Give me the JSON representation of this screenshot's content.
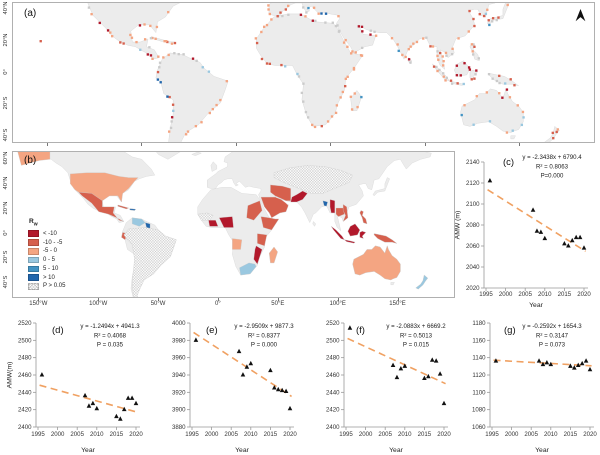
{
  "figure": {
    "background": "#ffffff",
    "panel_labels": {
      "a": "(a)",
      "b": "(b)",
      "c": "(c)",
      "d": "(d)",
      "e": "(e)",
      "f": "(f)",
      "g": "(g)"
    }
  },
  "panel_a": {
    "type": "map",
    "lat_tick_labels": [
      "40°N",
      "20°N",
      "0°",
      "20°S",
      "40°S"
    ],
    "lat_tick_values": [
      40,
      20,
      0,
      -20,
      -40
    ],
    "dot_colors": {
      "dark_red": "#b2182b",
      "red": "#d6604d",
      "salmon": "#f4a582",
      "light_blue": "#9ac8e0",
      "blue": "#4393c3",
      "dark_blue": "#2166ac",
      "ns_gray": "#cbcbcb"
    },
    "land_color": "#ececec",
    "border_color": "#d9d9d9"
  },
  "panel_b": {
    "type": "map",
    "lat_tick_labels": [
      "60°N",
      "40°N",
      "20°N",
      "0°",
      "20°S",
      "40°S"
    ],
    "lat_tick_values": [
      60,
      40,
      20,
      0,
      -20,
      -40
    ],
    "lon_tick_labels": [
      "150°W",
      "100°W",
      "50°W",
      "0°",
      "50°E",
      "100°E",
      "150°E"
    ],
    "lon_tick_values": [
      -150,
      -100,
      -50,
      0,
      50,
      100,
      150
    ],
    "legend": {
      "title_main": "R",
      "title_sub": "w",
      "items": [
        {
          "label": "< -10",
          "color": "#b2182b"
        },
        {
          "label": "-10 - -5",
          "color": "#d6604d"
        },
        {
          "label": "-5 - 0",
          "color": "#f4a582"
        },
        {
          "label": "0 - 5",
          "color": "#9ac8e0"
        },
        {
          "label": "5 - 10",
          "color": "#4393c3"
        },
        {
          "label": "> 10",
          "color": "#2166ac"
        },
        {
          "label": "P > 0.05",
          "color": "hatch"
        }
      ]
    },
    "country_categories": {
      "usa": 2,
      "alaska": 2,
      "mexico": 1,
      "cuba": 1,
      "hispaniola": 5,
      "venezuela": 3,
      "guyana": 5,
      "ecuador": 1,
      "south_america": 6,
      "wafrica": 6,
      "ghana_ivory": 0,
      "nigeria": 0,
      "sudan_egypt": 1,
      "horn_africa": 1,
      "tanzania": 1,
      "mozambique": 0,
      "angola": 2,
      "madagascar": 2,
      "south_africa": 3,
      "iran": 1,
      "saudi": 1,
      "pakistan": 0,
      "central_asia_china": 6,
      "bangladesh": 5,
      "myanmar": 0,
      "thailand": 1,
      "vietnam": 1,
      "sumatra": 0,
      "java": 0,
      "borneo": 0,
      "sulawesi": 0,
      "new_guinea": 1,
      "philippines": 1,
      "australia": 2,
      "new_zealand": 3
    },
    "land_color": "#ececec",
    "border_color": "#d4d4d4"
  },
  "chart_data": [
    {
      "panel": "c",
      "type": "scatter",
      "xlabel": "Year",
      "ylabel": "AMW (m)",
      "xlim": [
        1995,
        2020
      ],
      "ylim": [
        2020,
        2140
      ],
      "xticks": [
        1995,
        2000,
        2005,
        2010,
        2015,
        2020
      ],
      "yticks": [
        2020,
        2040,
        2060,
        2080,
        2100,
        2120,
        2140
      ],
      "x": [
        1996,
        2007,
        2008,
        2009,
        2010,
        2015,
        2016,
        2017,
        2018,
        2019,
        2020
      ],
      "y": [
        2122,
        2094,
        2074,
        2073,
        2067,
        2062,
        2060,
        2065,
        2068,
        2068,
        2058
      ],
      "trend": {
        "slope": -2.3438,
        "intercept": 6790.4,
        "equation": "y = -2.3438x + 6790.4",
        "r2": "R² = 0.8063",
        "p": "P=0.000"
      },
      "marker_color": "#111111",
      "trend_color": "#f0a162",
      "trend_style": "dashed"
    },
    {
      "panel": "d",
      "type": "scatter",
      "xlabel": "Year",
      "ylabel": "AMW(m)",
      "xlim": [
        1995,
        2020
      ],
      "ylim": [
        2400,
        2520
      ],
      "xticks": [
        1995,
        2000,
        2005,
        2010,
        2015,
        2020
      ],
      "yticks": [
        2400,
        2420,
        2440,
        2460,
        2480,
        2500,
        2520
      ],
      "x": [
        1996,
        2007,
        2008,
        2009,
        2010,
        2015,
        2016,
        2017,
        2018,
        2019,
        2020
      ],
      "y": [
        2460,
        2436,
        2424,
        2427,
        2421,
        2412,
        2409,
        2420,
        2433,
        2433,
        2427
      ],
      "trend": {
        "slope": -1.2494,
        "intercept": 4941.3,
        "equation": "y = -1.2494x + 4941.3",
        "r2": "R² = 0.4068",
        "p": "P = 0.035"
      },
      "marker_color": "#111111",
      "trend_color": "#f0a162",
      "trend_style": "dashed"
    },
    {
      "panel": "e",
      "type": "scatter",
      "xlabel": "Year",
      "ylabel": "",
      "xlim": [
        1995,
        2020
      ],
      "ylim": [
        3880,
        4000
      ],
      "xticks": [
        1995,
        2000,
        2005,
        2010,
        2015,
        2020
      ],
      "yticks": [
        3880,
        3900,
        3920,
        3940,
        3960,
        3980,
        4000
      ],
      "x": [
        1996,
        2007,
        2008,
        2009,
        2010,
        2015,
        2016,
        2017,
        2018,
        2019,
        2020
      ],
      "y": [
        3980,
        3967,
        3940,
        3949,
        3953,
        3945,
        3925,
        3923,
        3922,
        3921,
        3901
      ],
      "trend": {
        "slope": -2.9509,
        "intercept": 9877.3,
        "equation": "y = -2.9509x + 9877.3",
        "r2": "R² = 0.8377",
        "p": "P = 0.000"
      },
      "marker_color": "#111111",
      "trend_color": "#f0a162",
      "trend_style": "dashed"
    },
    {
      "panel": "f",
      "type": "scatter",
      "xlabel": "Year",
      "ylabel": "",
      "xlim": [
        1995,
        2020
      ],
      "ylim": [
        2400,
        2520
      ],
      "xticks": [
        1995,
        2000,
        2005,
        2010,
        2015,
        2020
      ],
      "yticks": [
        2400,
        2420,
        2440,
        2460,
        2480,
        2500,
        2520
      ],
      "x": [
        1996,
        2007,
        2008,
        2009,
        2010,
        2015,
        2016,
        2017,
        2018,
        2019,
        2020
      ],
      "y": [
        2514,
        2471,
        2457,
        2467,
        2470,
        2456,
        2458,
        2477,
        2476,
        2461,
        2427
      ],
      "trend": {
        "slope": -2.0883,
        "intercept": 6669.2,
        "equation": "y = -2.0883x + 6669.2",
        "r2": "R² = 0.5013",
        "p": "P = 0.015"
      },
      "marker_color": "#111111",
      "trend_color": "#f0a162",
      "trend_style": "dashed"
    },
    {
      "panel": "g",
      "type": "scatter",
      "xlabel": "Year",
      "ylabel": "",
      "xlim": [
        1995,
        2020
      ],
      "ylim": [
        1060,
        1180
      ],
      "xticks": [
        1995,
        2000,
        2005,
        2010,
        2015,
        2020
      ],
      "yticks": [
        1060,
        1080,
        1100,
        1120,
        1140,
        1160,
        1180
      ],
      "x": [
        1996,
        2007,
        2008,
        2009,
        2010,
        2015,
        2016,
        2017,
        2018,
        2019,
        2020
      ],
      "y": [
        1136,
        1136,
        1132,
        1134,
        1132,
        1130,
        1128,
        1131,
        1133,
        1136,
        1126
      ],
      "trend": {
        "slope": -0.2592,
        "intercept": 1654.3,
        "equation": "y = -0.2592x + 1654.3",
        "r2": "R² = 0.3147",
        "p": "P = 0.073"
      },
      "marker_color": "#111111",
      "trend_color": "#f0a162",
      "trend_style": "dashed"
    }
  ]
}
